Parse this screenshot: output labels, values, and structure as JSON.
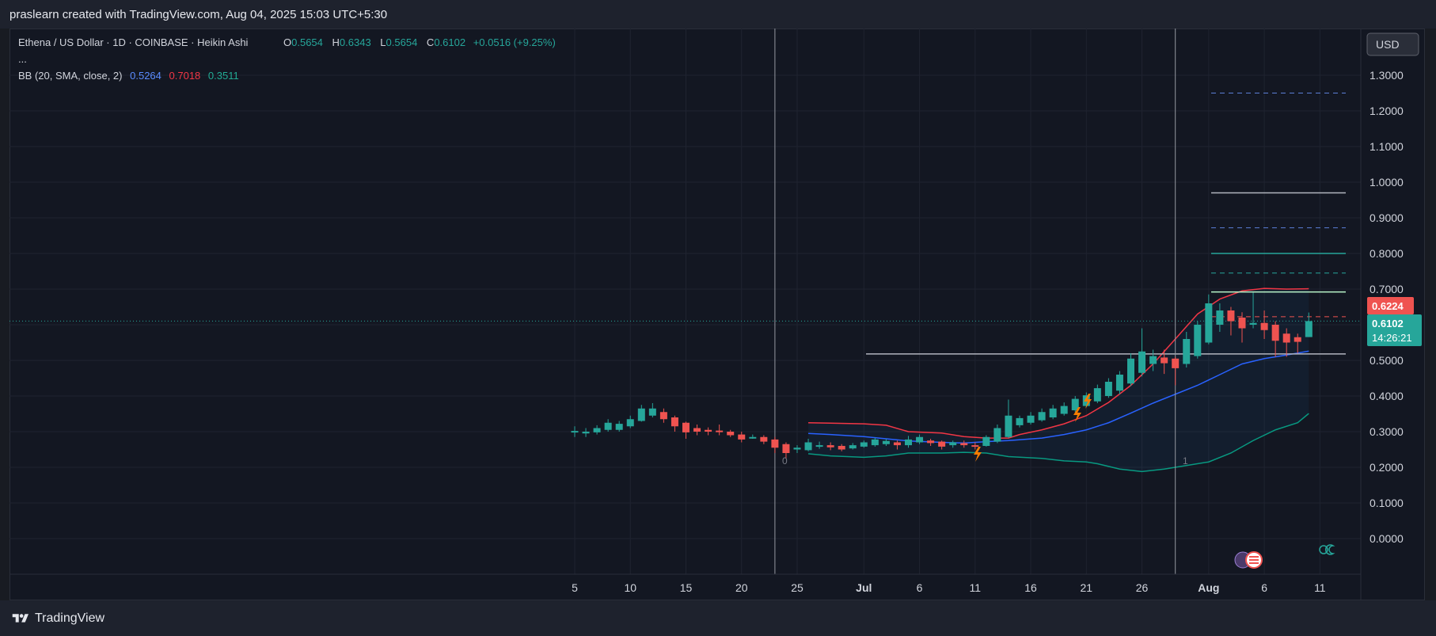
{
  "header": {
    "title": "praslearn created with TradingView.com, Aug 04, 2025 15:03 UTC+5:30"
  },
  "footer": {
    "brand": "TradingView",
    "brand_icon": "tradingview-logo-icon"
  },
  "legend": {
    "symbol": "Ethena / US Dollar · 1D · COINBASE · Heikin Ashi",
    "o_label": "O",
    "o_value": "0.5654",
    "h_label": "H",
    "h_value": "0.6343",
    "l_label": "L",
    "l_value": "0.5654",
    "c_label": "C",
    "c_value": "0.6102",
    "change": "+0.0516 (+9.25%)",
    "more": "...",
    "bb_label": "BB (20, SMA, close, 2)",
    "bb_basis": "0.5264",
    "bb_upper": "0.7018",
    "bb_lower": "0.3511"
  },
  "price_axis": {
    "currency": "USD",
    "ticks": [
      "1.3000",
      "1.2000",
      "1.1000",
      "1.0000",
      "0.9000",
      "0.8000",
      "0.7000",
      "0.6000",
      "0.5000",
      "0.4000",
      "0.3000",
      "0.2000",
      "0.1000",
      "0.0000"
    ],
    "price_label": "0.6102",
    "countdown": "14:26:21",
    "alert_label": "0.6224"
  },
  "time_axis": {
    "ticks": [
      "5",
      "10",
      "15",
      "20",
      "25",
      "Jul",
      "6",
      "11",
      "16",
      "21",
      "26",
      "Aug",
      "6",
      "11"
    ]
  },
  "markers": {
    "left": "0",
    "right": "1"
  },
  "colors": {
    "up": "#26a69a",
    "down": "#ef5350",
    "bb_basis": "#2962ff",
    "bb_upper": "#f23645",
    "bb_lower": "#089981",
    "background": "#131722"
  },
  "chart_data": {
    "type": "candlestick",
    "candle_style": "heikin-ashi",
    "y_range": [
      -0.05,
      1.45
    ],
    "x_range": [
      "2025-06-01",
      "2025-08-15"
    ],
    "candles": [
      {
        "date": "2025-06-05",
        "o": 0.3,
        "h": 0.315,
        "l": 0.285,
        "c": 0.302
      },
      {
        "date": "2025-06-06",
        "o": 0.295,
        "h": 0.31,
        "l": 0.285,
        "c": 0.3
      },
      {
        "date": "2025-06-07",
        "o": 0.298,
        "h": 0.318,
        "l": 0.292,
        "c": 0.31
      },
      {
        "date": "2025-06-08",
        "o": 0.305,
        "h": 0.335,
        "l": 0.3,
        "c": 0.325
      },
      {
        "date": "2025-06-09",
        "o": 0.305,
        "h": 0.33,
        "l": 0.3,
        "c": 0.322
      },
      {
        "date": "2025-06-10",
        "o": 0.315,
        "h": 0.345,
        "l": 0.31,
        "c": 0.335
      },
      {
        "date": "2025-06-11",
        "o": 0.33,
        "h": 0.375,
        "l": 0.328,
        "c": 0.365
      },
      {
        "date": "2025-06-12",
        "o": 0.345,
        "h": 0.38,
        "l": 0.34,
        "c": 0.365
      },
      {
        "date": "2025-06-13",
        "o": 0.355,
        "h": 0.365,
        "l": 0.325,
        "c": 0.335
      },
      {
        "date": "2025-06-14",
        "o": 0.34,
        "h": 0.345,
        "l": 0.3,
        "c": 0.315
      },
      {
        "date": "2025-06-15",
        "o": 0.325,
        "h": 0.328,
        "l": 0.28,
        "c": 0.298
      },
      {
        "date": "2025-06-16",
        "o": 0.31,
        "h": 0.32,
        "l": 0.29,
        "c": 0.3
      },
      {
        "date": "2025-06-17",
        "o": 0.305,
        "h": 0.312,
        "l": 0.29,
        "c": 0.3
      },
      {
        "date": "2025-06-18",
        "o": 0.303,
        "h": 0.32,
        "l": 0.29,
        "c": 0.302
      },
      {
        "date": "2025-06-19",
        "o": 0.3,
        "h": 0.305,
        "l": 0.285,
        "c": 0.29
      },
      {
        "date": "2025-06-20",
        "o": 0.292,
        "h": 0.3,
        "l": 0.27,
        "c": 0.278
      },
      {
        "date": "2025-06-21",
        "o": 0.285,
        "h": 0.292,
        "l": 0.28,
        "c": 0.285
      },
      {
        "date": "2025-06-22",
        "o": 0.285,
        "h": 0.29,
        "l": 0.265,
        "c": 0.272
      },
      {
        "date": "2025-06-23",
        "o": 0.278,
        "h": 0.285,
        "l": 0.24,
        "c": 0.255
      },
      {
        "date": "2025-06-24",
        "o": 0.265,
        "h": 0.27,
        "l": 0.225,
        "c": 0.24
      },
      {
        "date": "2025-06-25",
        "o": 0.25,
        "h": 0.262,
        "l": 0.24,
        "c": 0.255
      },
      {
        "date": "2025-06-26",
        "o": 0.248,
        "h": 0.28,
        "l": 0.245,
        "c": 0.27
      },
      {
        "date": "2025-06-27",
        "o": 0.258,
        "h": 0.272,
        "l": 0.252,
        "c": 0.262
      },
      {
        "date": "2025-06-28",
        "o": 0.262,
        "h": 0.27,
        "l": 0.248,
        "c": 0.256
      },
      {
        "date": "2025-06-29",
        "o": 0.26,
        "h": 0.265,
        "l": 0.245,
        "c": 0.25
      },
      {
        "date": "2025-06-30",
        "o": 0.253,
        "h": 0.268,
        "l": 0.25,
        "c": 0.262
      },
      {
        "date": "2025-07-01",
        "o": 0.258,
        "h": 0.275,
        "l": 0.255,
        "c": 0.27
      },
      {
        "date": "2025-07-02",
        "o": 0.262,
        "h": 0.283,
        "l": 0.258,
        "c": 0.278
      },
      {
        "date": "2025-07-03",
        "o": 0.265,
        "h": 0.28,
        "l": 0.26,
        "c": 0.274
      },
      {
        "date": "2025-07-04",
        "o": 0.27,
        "h": 0.275,
        "l": 0.25,
        "c": 0.262
      },
      {
        "date": "2025-07-05",
        "o": 0.262,
        "h": 0.288,
        "l": 0.255,
        "c": 0.278
      },
      {
        "date": "2025-07-06",
        "o": 0.27,
        "h": 0.292,
        "l": 0.265,
        "c": 0.285
      },
      {
        "date": "2025-07-07",
        "o": 0.275,
        "h": 0.28,
        "l": 0.26,
        "c": 0.268
      },
      {
        "date": "2025-07-08",
        "o": 0.272,
        "h": 0.275,
        "l": 0.25,
        "c": 0.258
      },
      {
        "date": "2025-07-09",
        "o": 0.262,
        "h": 0.275,
        "l": 0.255,
        "c": 0.27
      },
      {
        "date": "2025-07-10",
        "o": 0.268,
        "h": 0.275,
        "l": 0.255,
        "c": 0.262
      },
      {
        "date": "2025-07-11",
        "o": 0.262,
        "h": 0.27,
        "l": 0.25,
        "c": 0.26
      },
      {
        "date": "2025-07-12",
        "o": 0.26,
        "h": 0.29,
        "l": 0.258,
        "c": 0.285
      },
      {
        "date": "2025-07-13",
        "o": 0.272,
        "h": 0.32,
        "l": 0.268,
        "c": 0.31
      },
      {
        "date": "2025-07-14",
        "o": 0.285,
        "h": 0.39,
        "l": 0.282,
        "c": 0.345
      },
      {
        "date": "2025-07-15",
        "o": 0.318,
        "h": 0.345,
        "l": 0.312,
        "c": 0.338
      },
      {
        "date": "2025-07-16",
        "o": 0.325,
        "h": 0.355,
        "l": 0.32,
        "c": 0.345
      },
      {
        "date": "2025-07-17",
        "o": 0.332,
        "h": 0.365,
        "l": 0.328,
        "c": 0.355
      },
      {
        "date": "2025-07-18",
        "o": 0.34,
        "h": 0.375,
        "l": 0.335,
        "c": 0.365
      },
      {
        "date": "2025-07-19",
        "o": 0.35,
        "h": 0.382,
        "l": 0.345,
        "c": 0.372
      },
      {
        "date": "2025-07-20",
        "o": 0.36,
        "h": 0.4,
        "l": 0.355,
        "c": 0.392
      },
      {
        "date": "2025-07-21",
        "o": 0.372,
        "h": 0.41,
        "l": 0.368,
        "c": 0.402
      },
      {
        "date": "2025-07-22",
        "o": 0.385,
        "h": 0.432,
        "l": 0.38,
        "c": 0.422
      },
      {
        "date": "2025-07-23",
        "o": 0.4,
        "h": 0.45,
        "l": 0.395,
        "c": 0.44
      },
      {
        "date": "2025-07-24",
        "o": 0.415,
        "h": 0.47,
        "l": 0.405,
        "c": 0.46
      },
      {
        "date": "2025-07-25",
        "o": 0.435,
        "h": 0.52,
        "l": 0.428,
        "c": 0.505
      },
      {
        "date": "2025-07-26",
        "o": 0.465,
        "h": 0.59,
        "l": 0.455,
        "c": 0.525
      },
      {
        "date": "2025-07-27",
        "o": 0.49,
        "h": 0.53,
        "l": 0.47,
        "c": 0.512
      },
      {
        "date": "2025-07-28",
        "o": 0.508,
        "h": 0.53,
        "l": 0.462,
        "c": 0.492
      },
      {
        "date": "2025-07-29",
        "o": 0.505,
        "h": 0.51,
        "l": 0.43,
        "c": 0.478
      },
      {
        "date": "2025-07-30",
        "o": 0.49,
        "h": 0.58,
        "l": 0.48,
        "c": 0.56
      },
      {
        "date": "2025-07-31",
        "o": 0.512,
        "h": 0.61,
        "l": 0.505,
        "c": 0.6
      },
      {
        "date": "2025-08-01",
        "o": 0.55,
        "h": 0.685,
        "l": 0.545,
        "c": 0.66
      },
      {
        "date": "2025-08-02",
        "o": 0.6,
        "h": 0.66,
        "l": 0.58,
        "c": 0.64
      },
      {
        "date": "2025-08-03",
        "o": 0.64,
        "h": 0.65,
        "l": 0.57,
        "c": 0.61
      },
      {
        "date": "2025-08-04",
        "o": 0.62,
        "h": 0.635,
        "l": 0.55,
        "c": 0.59
      },
      {
        "date": "2025-08-05",
        "o": 0.6,
        "h": 0.69,
        "l": 0.59,
        "c": 0.605
      },
      {
        "date": "2025-08-06",
        "o": 0.605,
        "h": 0.64,
        "l": 0.56,
        "c": 0.585
      },
      {
        "date": "2025-08-07",
        "o": 0.6,
        "h": 0.61,
        "l": 0.51,
        "c": 0.555
      },
      {
        "date": "2025-08-08",
        "o": 0.575,
        "h": 0.59,
        "l": 0.51,
        "c": 0.55
      },
      {
        "date": "2025-08-09",
        "o": 0.565,
        "h": 0.575,
        "l": 0.52,
        "c": 0.552
      },
      {
        "date": "2025-08-10",
        "o": 0.5654,
        "h": 0.6343,
        "l": 0.5654,
        "c": 0.6102
      }
    ],
    "bollinger": {
      "upper": [
        [
          0.325,
          "2025-06-26"
        ],
        [
          0.324,
          "2025-06-28"
        ],
        [
          0.322,
          "2025-07-01"
        ],
        [
          0.318,
          "2025-07-03"
        ],
        [
          0.3,
          "2025-07-05"
        ],
        [
          0.296,
          "2025-07-08"
        ],
        [
          0.286,
          "2025-07-10"
        ],
        [
          0.282,
          "2025-07-12"
        ],
        [
          0.282,
          "2025-07-14"
        ],
        [
          0.292,
          "2025-07-15"
        ],
        [
          0.305,
          "2025-07-17"
        ],
        [
          0.322,
          "2025-07-19"
        ],
        [
          0.345,
          "2025-07-21"
        ],
        [
          0.382,
          "2025-07-23"
        ],
        [
          0.43,
          "2025-07-25"
        ],
        [
          0.49,
          "2025-07-27"
        ],
        [
          0.56,
          "2025-07-29"
        ],
        [
          0.63,
          "2025-07-31"
        ],
        [
          0.672,
          "2025-08-02"
        ],
        [
          0.695,
          "2025-08-04"
        ],
        [
          0.702,
          "2025-08-06"
        ],
        [
          0.7,
          "2025-08-08"
        ],
        [
          0.701,
          "2025-08-10"
        ]
      ],
      "basis": [
        [
          0.295,
          "2025-06-26"
        ],
        [
          0.292,
          "2025-06-28"
        ],
        [
          0.286,
          "2025-07-01"
        ],
        [
          0.28,
          "2025-07-03"
        ],
        [
          0.274,
          "2025-07-05"
        ],
        [
          0.27,
          "2025-07-08"
        ],
        [
          0.268,
          "2025-07-10"
        ],
        [
          0.272,
          "2025-07-12"
        ],
        [
          0.275,
          "2025-07-14"
        ],
        [
          0.282,
          "2025-07-17"
        ],
        [
          0.292,
          "2025-07-19"
        ],
        [
          0.305,
          "2025-07-21"
        ],
        [
          0.325,
          "2025-07-23"
        ],
        [
          0.352,
          "2025-07-25"
        ],
        [
          0.38,
          "2025-07-27"
        ],
        [
          0.405,
          "2025-07-29"
        ],
        [
          0.43,
          "2025-07-31"
        ],
        [
          0.46,
          "2025-08-02"
        ],
        [
          0.49,
          "2025-08-04"
        ],
        [
          0.505,
          "2025-08-06"
        ],
        [
          0.515,
          "2025-08-08"
        ],
        [
          0.526,
          "2025-08-10"
        ]
      ],
      "lower": [
        [
          0.238,
          "2025-06-26"
        ],
        [
          0.232,
          "2025-06-28"
        ],
        [
          0.228,
          "2025-07-01"
        ],
        [
          0.232,
          "2025-07-03"
        ],
        [
          0.24,
          "2025-07-05"
        ],
        [
          0.24,
          "2025-07-08"
        ],
        [
          0.242,
          "2025-07-10"
        ],
        [
          0.24,
          "2025-07-12"
        ],
        [
          0.23,
          "2025-07-14"
        ],
        [
          0.225,
          "2025-07-17"
        ],
        [
          0.218,
          "2025-07-19"
        ],
        [
          0.215,
          "2025-07-21"
        ],
        [
          0.21,
          "2025-07-22"
        ],
        [
          0.195,
          "2025-07-24"
        ],
        [
          0.188,
          "2025-07-26"
        ],
        [
          0.195,
          "2025-07-28"
        ],
        [
          0.205,
          "2025-07-30"
        ],
        [
          0.215,
          "2025-08-01"
        ],
        [
          0.24,
          "2025-08-03"
        ],
        [
          0.275,
          "2025-08-05"
        ],
        [
          0.305,
          "2025-08-07"
        ],
        [
          0.325,
          "2025-08-09"
        ],
        [
          0.351,
          "2025-08-10"
        ]
      ]
    },
    "horizontal_levels": [
      {
        "price": 1.25,
        "style": "dashed",
        "color": "#5b7fd8"
      },
      {
        "price": 0.97,
        "style": "solid",
        "color": "#b2b5be"
      },
      {
        "price": 0.872,
        "style": "dashed",
        "color": "#5b7fd8"
      },
      {
        "price": 0.8,
        "style": "solid",
        "color": "#26a69a"
      },
      {
        "price": 0.745,
        "style": "dashed",
        "color": "#26a69a"
      },
      {
        "price": 0.692,
        "style": "solid",
        "color": "#b9f6ca"
      },
      {
        "price": 0.6224,
        "style": "dashed",
        "color": "#ef5350"
      },
      {
        "price": 0.518,
        "style": "solid",
        "color": "#b2b5be"
      }
    ],
    "vertical_lines": [
      "2025-06-23",
      "2025-07-29"
    ]
  }
}
